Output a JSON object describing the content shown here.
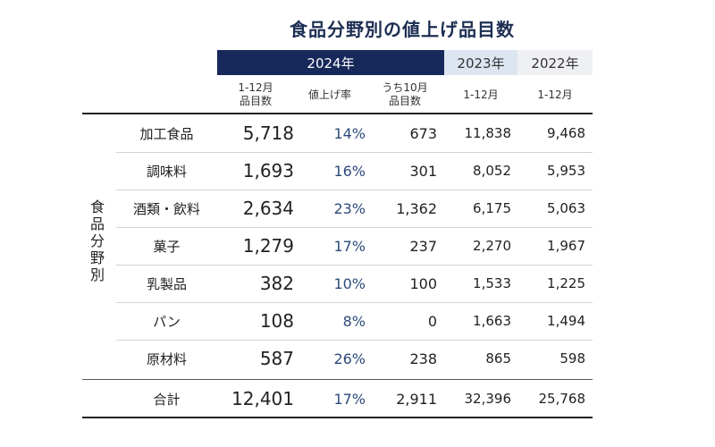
{
  "title": "食品分野別の値上げ品目数",
  "headers": {
    "y2024": "2024年",
    "y2023": "2023年",
    "y2022": "2022年"
  },
  "subheaders": {
    "items_line1": "1-12月",
    "items_line2": "品目数",
    "rate": "値上げ率",
    "oct_line1": "うち10月",
    "oct_line2": "品目数",
    "y2023_period": "1-12月",
    "y2022_period": "1-12月"
  },
  "side_label": [
    "食",
    "品",
    "分",
    "野",
    "別"
  ],
  "rows": [
    {
      "category": "加工食品",
      "items": "5,718",
      "rate": "14%",
      "oct": "673",
      "y2023": "11,838",
      "y2022": "9,468"
    },
    {
      "category": "調味料",
      "items": "1,693",
      "rate": "16%",
      "oct": "301",
      "y2023": "8,052",
      "y2022": "5,953"
    },
    {
      "category": "酒類・飲料",
      "items": "2,634",
      "rate": "23%",
      "oct": "1,362",
      "y2023": "6,175",
      "y2022": "5,063"
    },
    {
      "category": "菓子",
      "items": "1,279",
      "rate": "17%",
      "oct": "237",
      "y2023": "2,270",
      "y2022": "1,967"
    },
    {
      "category": "乳製品",
      "items": "382",
      "rate": "10%",
      "oct": "100",
      "y2023": "1,533",
      "y2022": "1,225"
    },
    {
      "category": "パン",
      "items": "108",
      "rate": "8%",
      "oct": "0",
      "y2023": "1,663",
      "y2022": "1,494"
    },
    {
      "category": "原材料",
      "items": "587",
      "rate": "26%",
      "oct": "238",
      "y2023": "865",
      "y2022": "598"
    }
  ],
  "total": {
    "category": "合計",
    "items": "12,401",
    "rate": "17%",
    "oct": "2,911",
    "y2023": "32,396",
    "y2022": "25,768"
  }
}
